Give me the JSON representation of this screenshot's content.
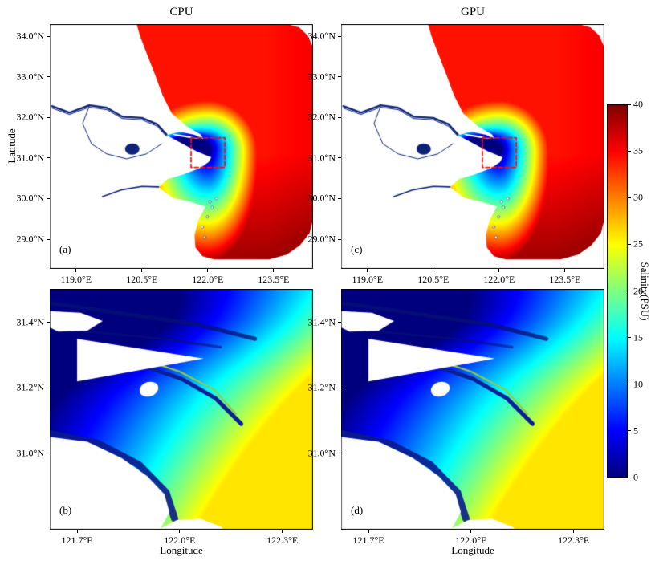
{
  "background": "#ffffff",
  "land_color": "#ffffff",
  "highlight_color": "#ee1111",
  "chart_data": [
    {
      "type": "heatmap",
      "panel": "a",
      "title": "CPU",
      "panel_label": "(a)",
      "ylabel": "Latitude",
      "x_tick_labels": [
        "119.0°E",
        "120.5°E",
        "122.0°E",
        "123.5°E"
      ],
      "x_tick_values": [
        119.0,
        120.5,
        122.0,
        123.5
      ],
      "y_tick_labels": [
        "34.0°N",
        "33.0°N",
        "32.0°N",
        "31.0°N",
        "30.0°N",
        "29.0°N"
      ],
      "y_tick_values": [
        34.0,
        33.0,
        32.0,
        31.0,
        30.0,
        29.0
      ],
      "xlim": [
        118.4,
        124.4
      ],
      "ylim": [
        28.27,
        34.3
      ],
      "value_description": "Sea-surface salinity (PSU), CPU model result: fresh (dark blue, ~0) Yangtze river and estuary plume widening to cyan/green nearshore, orange (~34) open sea to the north-east and deep red (~38-40) to the south-east; white = land",
      "highlight_box": {
        "lon_range": [
          121.62,
          122.39
        ],
        "lat_range": [
          30.77,
          31.5
        ],
        "style": "red dashed rectangle"
      }
    },
    {
      "type": "heatmap",
      "panel": "c",
      "title": "GPU",
      "panel_label": "(c)",
      "ylabel": "",
      "x_tick_labels": [
        "119.0°E",
        "120.5°E",
        "122.0°E",
        "123.5°E"
      ],
      "x_tick_values": [
        119.0,
        120.5,
        122.0,
        123.5
      ],
      "y_tick_labels": [
        "34.0°N",
        "33.0°N",
        "32.0°N",
        "31.0°N",
        "30.0°N",
        "29.0°N"
      ],
      "y_tick_values": [
        34.0,
        33.0,
        32.0,
        31.0,
        30.0,
        29.0
      ],
      "xlim": [
        118.4,
        124.4
      ],
      "ylim": [
        28.27,
        34.3
      ],
      "value_description": "Sea-surface salinity (PSU), GPU model result: visually identical to CPU panel",
      "highlight_box": {
        "lon_range": [
          121.62,
          122.39
        ],
        "lat_range": [
          30.77,
          31.5
        ],
        "style": "red dashed rectangle"
      }
    },
    {
      "type": "heatmap",
      "panel": "b",
      "panel_label": "(b)",
      "xlabel": "Longitude",
      "x_tick_labels": [
        "121.7°E",
        "122.0°E",
        "122.3°E"
      ],
      "x_tick_values": [
        121.7,
        122.0,
        122.3
      ],
      "y_tick_labels": [
        "31.4°N",
        "31.2°N",
        "31.0°N"
      ],
      "y_tick_values": [
        31.4,
        31.2,
        31.0
      ],
      "xlim": [
        121.62,
        122.39
      ],
      "ylim": [
        30.766,
        31.503
      ],
      "value_description": "Zoom of red-box region (estuary mouth), CPU: dark blue (~0-5 PSU) in the north-west channels grading to cyan/green and yellow (~25 PSU) toward the south-east; white islands and coast"
    },
    {
      "type": "heatmap",
      "panel": "d",
      "panel_label": "(d)",
      "xlabel": "Longitude",
      "x_tick_labels": [
        "121.7°E",
        "122.0°E",
        "122.3°E"
      ],
      "x_tick_values": [
        121.7,
        122.0,
        122.3
      ],
      "y_tick_labels": [
        "31.4°N",
        "31.2°N",
        "31.0°N"
      ],
      "y_tick_values": [
        31.4,
        31.2,
        31.0
      ],
      "xlim": [
        121.62,
        122.39
      ],
      "ylim": [
        30.766,
        31.503
      ],
      "value_description": "Zoom of red-box region (estuary mouth), GPU: visually identical to panel (b)"
    },
    {
      "type": "colorbar",
      "label": "Salinity(PSU)",
      "tick_labels": [
        "0",
        "5",
        "10",
        "15",
        "20",
        "25",
        "30",
        "35",
        "40"
      ],
      "tick_values": [
        0,
        5,
        10,
        15,
        20,
        25,
        30,
        35,
        40
      ],
      "range": [
        0,
        40
      ],
      "colormap": "jet",
      "orientation": "vertical"
    }
  ]
}
